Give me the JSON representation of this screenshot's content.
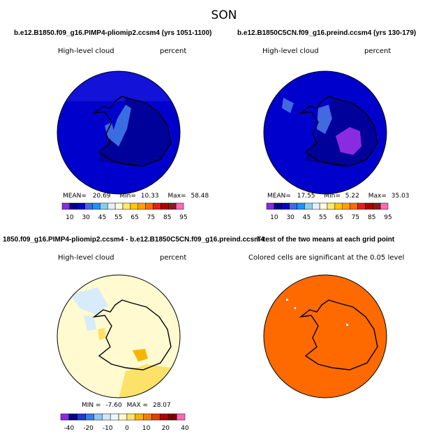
{
  "figure": {
    "season": "SON",
    "variable": "High-level cloud",
    "units": "percent"
  },
  "colors": {
    "palette_abs": [
      "#8a2be2",
      "#00008b",
      "#0000cd",
      "#4169e1",
      "#1e90ff",
      "#87ceeb",
      "#e0f0ff",
      "#fffde0",
      "#ffea70",
      "#ffc800",
      "#ffa000",
      "#ff6a00",
      "#e02020",
      "#b00000",
      "#8b1a1a",
      "#ff69b4"
    ],
    "palette_diff": [
      "#8a2be2",
      "#00008b",
      "#1e3ad0",
      "#3a7be8",
      "#8cc8f5",
      "#cde8fa",
      "#eef7fd",
      "#fff9d0",
      "#fde26a",
      "#f7b500",
      "#f08000",
      "#e04000",
      "#b00000",
      "#7a0000",
      "#ff69b4"
    ]
  },
  "chart_data": [
    {
      "type": "heatmap",
      "title": "b.e12.B1850.f09_g16.PIMP4-pliomip2.ccsm4 (yrs 1051-1100)",
      "left_label": "High-level cloud",
      "right_label": "percent",
      "stats": {
        "mean_label": "MEAN=",
        "mean": "20.69",
        "min_label": "Min=",
        "min": "10.33",
        "max_label": "Max=",
        "max": "58.48"
      },
      "colorbar_ticks": [
        "10",
        "30",
        "45",
        "55",
        "65",
        "75",
        "85",
        "95"
      ]
    },
    {
      "type": "heatmap",
      "title": "b.e12.B1850C5CN.f09_g16.preind.ccsm4 (yrs 130-179)",
      "left_label": "High-level cloud",
      "right_label": "percent",
      "stats": {
        "mean_label": "MEAN=",
        "mean": "17.55",
        "min_label": "Min=",
        "min": "5.22",
        "max_label": "Max=",
        "max": "35.03"
      },
      "colorbar_ticks": [
        "10",
        "30",
        "45",
        "55",
        "65",
        "75",
        "85",
        "95"
      ]
    },
    {
      "type": "heatmap",
      "title": "1850.f09_g16.PIMP4-pliomip2.ccsm4 - b.e12.B1850C5CN.f09_g16.preind.ccsm4",
      "left_label": "High-level cloud",
      "right_label": "percent",
      "stats": {
        "min_label": "MIN =",
        "min": "-7.60",
        "max_label": "MAX =",
        "max": "28.07"
      },
      "colorbar_ticks": [
        "-40",
        "-20",
        "-10",
        "0",
        "10",
        "20",
        "40"
      ]
    },
    {
      "type": "heatmap",
      "title": "T-test of the two means at each grid point",
      "caption": "Colored cells are significant at the 0.05 level",
      "fill_color": "#ff6a00"
    }
  ]
}
